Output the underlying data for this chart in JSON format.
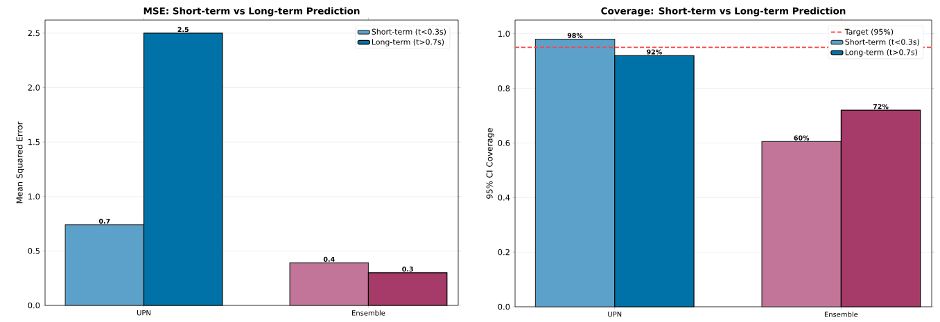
{
  "chart_data": [
    {
      "type": "bar",
      "title": "MSE: Short-term vs Long-term Prediction",
      "ylabel": "Mean Squared Error",
      "categories": [
        "UPN",
        "Ensemble"
      ],
      "series": [
        {
          "name": "Short-term (t<0.3s)",
          "color": "#5ba1c9",
          "colors": [
            "#5ba1c9",
            "#c27598"
          ],
          "values": [
            0.74,
            0.39
          ],
          "value_labels": [
            "0.7",
            "0.4"
          ]
        },
        {
          "name": "Long-term (t>0.7s)",
          "color": "#0072a7",
          "colors": [
            "#0072a7",
            "#a63a68"
          ],
          "values": [
            2.5,
            0.3
          ],
          "value_labels": [
            "2.5",
            "0.3"
          ]
        }
      ],
      "ylim": [
        0,
        2.62
      ],
      "yticks": [
        {
          "value": 0,
          "label": "0.0"
        },
        0.5,
        {
          "value": 1,
          "label": "1.0"
        },
        1.5,
        {
          "value": 2,
          "label": "2.0"
        },
        2.5
      ],
      "grid": "y",
      "legend": "top right"
    },
    {
      "type": "bar",
      "title": "Coverage: Short-term vs Long-term Prediction",
      "ylabel": "95% CI Coverage",
      "categories": [
        "UPN",
        "Ensemble"
      ],
      "series": [
        {
          "name": "Short-term (t<0.3s)",
          "color": "#5ba1c9",
          "colors": [
            "#5ba1c9",
            "#c27598"
          ],
          "values": [
            0.98,
            0.605
          ],
          "value_labels": [
            "98%",
            "60%"
          ]
        },
        {
          "name": "Long-term (t>0.7s)",
          "color": "#0072a7",
          "colors": [
            "#0072a7",
            "#a63a68"
          ],
          "values": [
            0.92,
            0.72
          ],
          "value_labels": [
            "92%",
            "72%"
          ]
        }
      ],
      "ref_lines": [
        {
          "axis": "y",
          "value": 0.95,
          "label": "Target (95%)",
          "color": "#ff4444",
          "line_style": "dashed"
        }
      ],
      "ylim": [
        0,
        1.05
      ],
      "yticks": [
        {
          "value": 0,
          "label": "0.0"
        },
        0.2,
        0.4,
        0.6,
        0.8,
        {
          "value": 1,
          "label": "1.0"
        }
      ],
      "grid": "y",
      "legend": "top right"
    }
  ]
}
